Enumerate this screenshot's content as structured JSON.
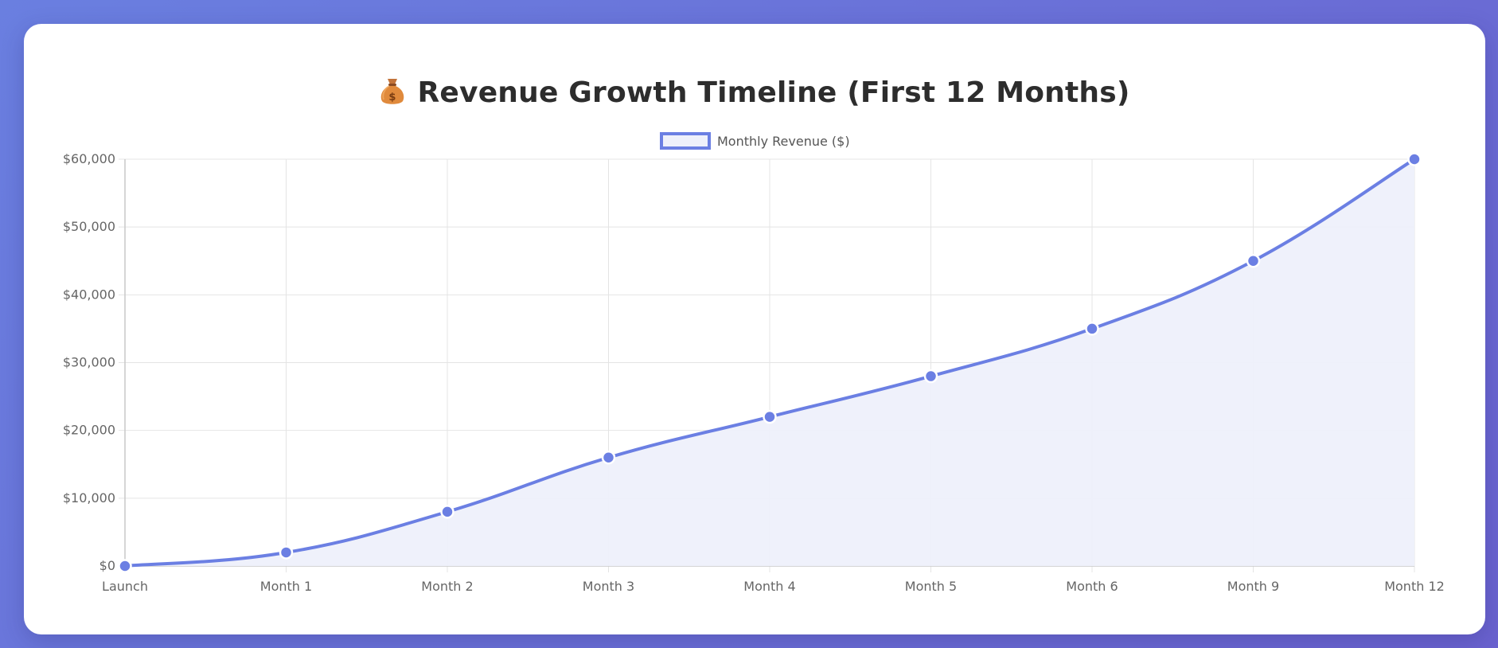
{
  "title": "Revenue Growth Timeline (First 12 Months)",
  "title_icon": "money-bag-icon",
  "colors": {
    "line": "#6b7fe3",
    "fill": "#eef0fb",
    "grid": "#e4e4e4",
    "point_border": "#ffffff",
    "text": "#666666",
    "title": "#2d2d2d"
  },
  "chart_data": {
    "type": "line",
    "title": "Revenue Growth Timeline (First 12 Months)",
    "categories": [
      "Launch",
      "Month 1",
      "Month 2",
      "Month 3",
      "Month 4",
      "Month 5",
      "Month 6",
      "Month 9",
      "Month 12"
    ],
    "series": [
      {
        "name": "Monthly Revenue ($)",
        "values": [
          0,
          2000,
          8000,
          16000,
          22000,
          28000,
          35000,
          45000,
          60000
        ]
      }
    ],
    "ylim": [
      0,
      60000
    ],
    "yticks": [
      0,
      10000,
      20000,
      30000,
      40000,
      50000,
      60000
    ],
    "ytick_labels": [
      "$0",
      "$10,000",
      "$20,000",
      "$30,000",
      "$40,000",
      "$50,000",
      "$60,000"
    ],
    "fill_area": true,
    "smooth": true,
    "grid": true,
    "legend_position": "top-center"
  }
}
